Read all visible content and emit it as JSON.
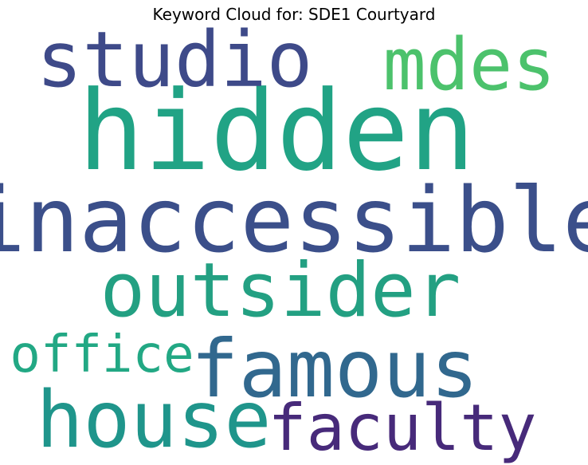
{
  "title": "Keyword Cloud for: SDE1 Courtyard",
  "words": [
    {
      "text": "hidden",
      "color": "#21a385"
    },
    {
      "text": "inaccessible",
      "color": "#3b4f8a"
    },
    {
      "text": "studio",
      "color": "#3e4a89"
    },
    {
      "text": "mdes",
      "color": "#4cc26c"
    },
    {
      "text": "outsider",
      "color": "#23a082"
    },
    {
      "text": "famous",
      "color": "#31688e"
    },
    {
      "text": "house",
      "color": "#1f958b"
    },
    {
      "text": "faculty",
      "color": "#472a7a"
    },
    {
      "text": "office",
      "color": "#22a884"
    }
  ]
}
